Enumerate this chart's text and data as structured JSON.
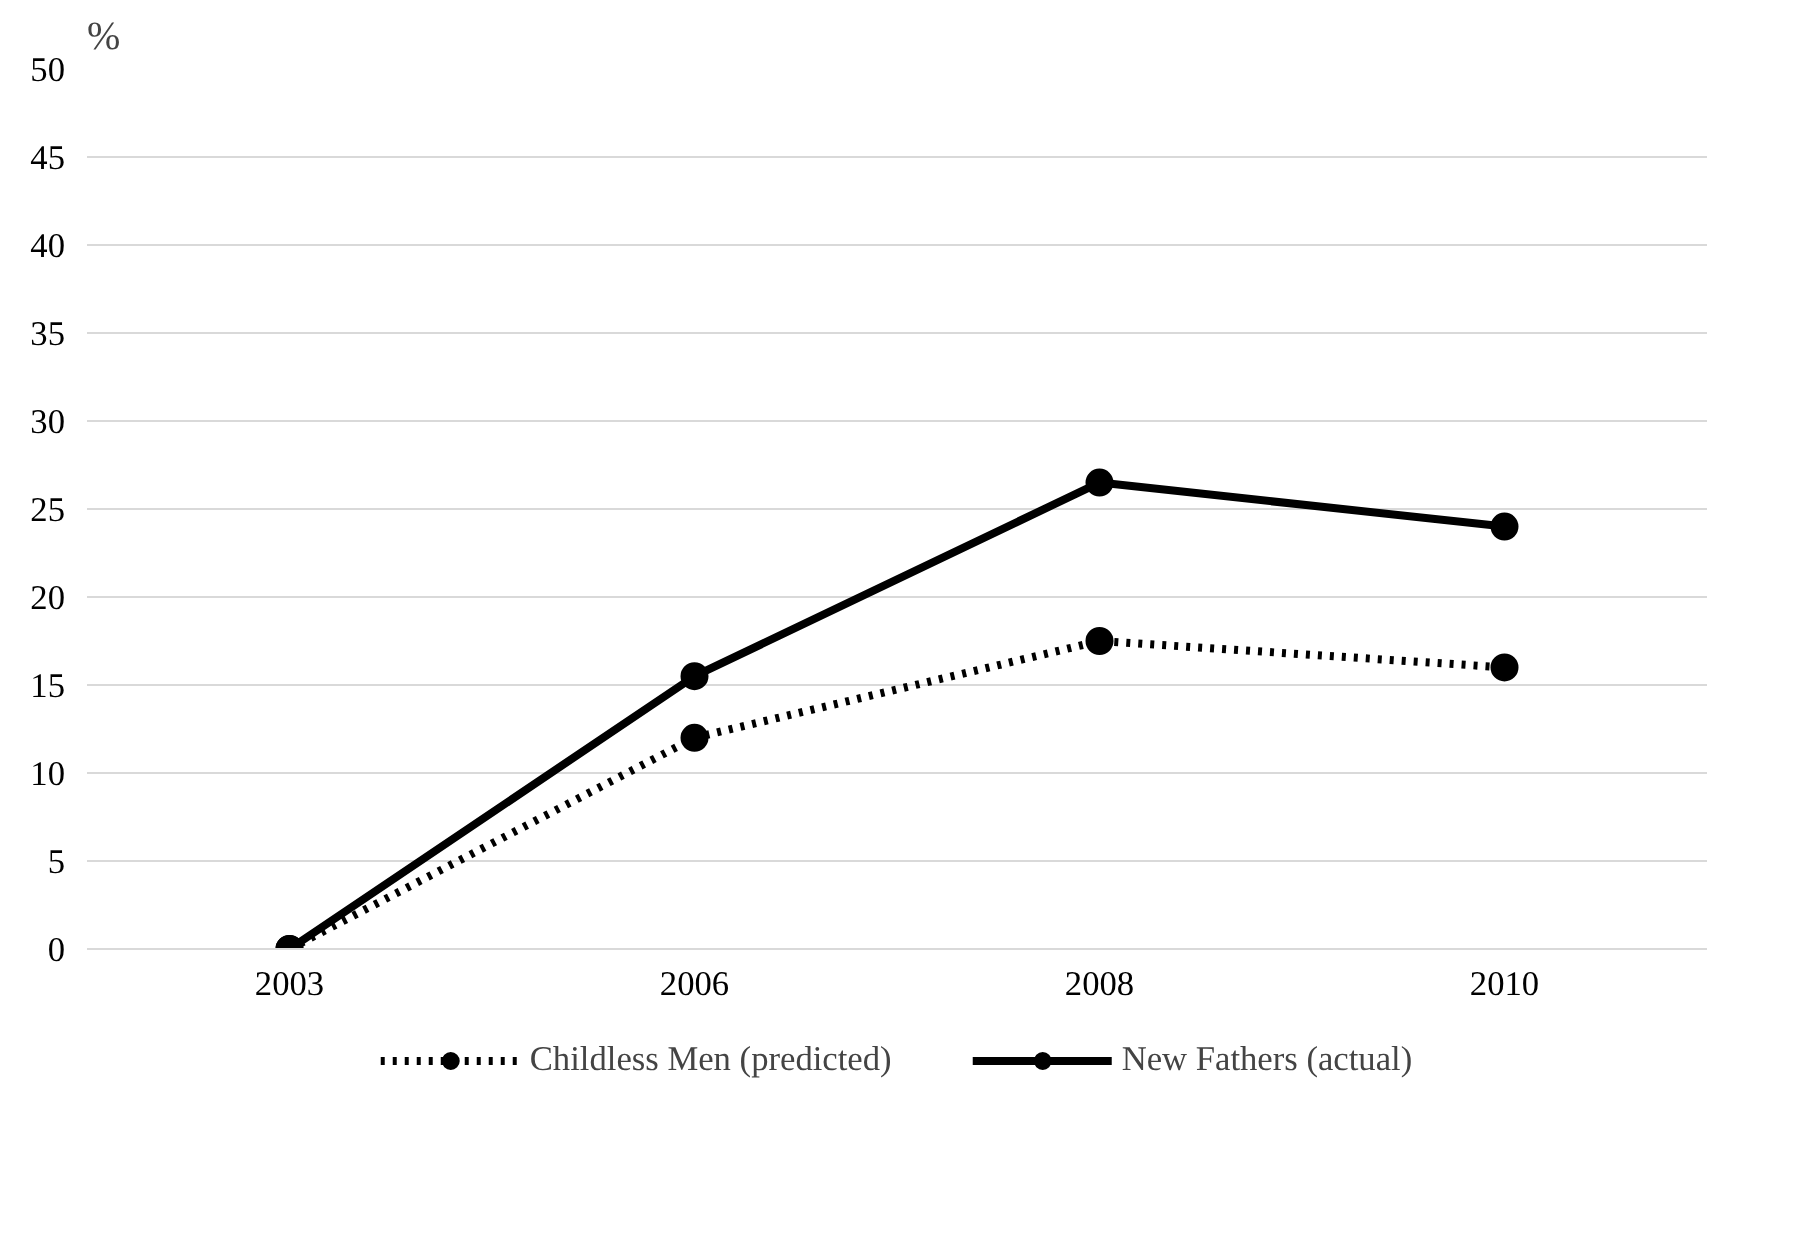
{
  "chart_data": {
    "type": "line",
    "ylabel": "%",
    "categories": [
      "2003",
      "2006",
      "2008",
      "2010"
    ],
    "series": [
      {
        "name": "Childless Men (predicted)",
        "color": "#000000",
        "line_style": "dotted",
        "values": [
          0,
          12,
          17.5,
          16
        ]
      },
      {
        "name": "New Fathers (actual)",
        "color": "#000000",
        "line_style": "solid",
        "values": [
          0,
          15.5,
          26.5,
          24
        ]
      }
    ],
    "ylim": [
      0,
      50
    ],
    "yticks": [
      0,
      5,
      10,
      15,
      20,
      25,
      30,
      35,
      40,
      45,
      50
    ],
    "grid": "y",
    "legend": "bottom",
    "marker": "circle"
  }
}
